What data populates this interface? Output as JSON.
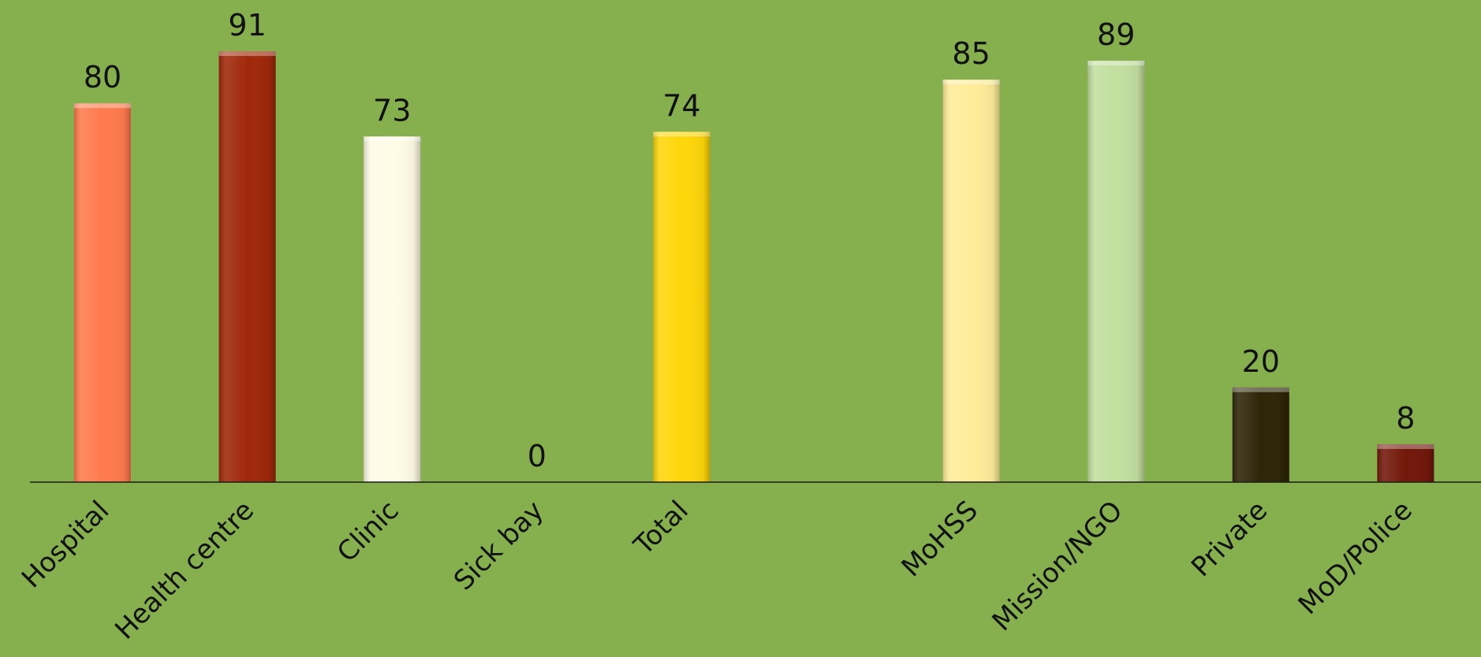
{
  "chart_data": {
    "type": "bar",
    "categories": [
      "Hospital",
      "Health centre",
      "Clinic",
      "Sick bay",
      "Total",
      "",
      "MoHSS",
      "Mission/NGO",
      "Private",
      "MoD/Police"
    ],
    "values": [
      80,
      91,
      73,
      0,
      74,
      null,
      85,
      89,
      20,
      8
    ],
    "value_labels": [
      "80",
      "91",
      "73",
      "0",
      "74",
      "",
      "85",
      "89",
      "20",
      "8"
    ],
    "colors": [
      "#ff7a4d",
      "#a0280a",
      "#fffbe6",
      "#ffffff",
      "#ffd60a",
      "",
      "#ffec99",
      "#c2dfa0",
      "#2e2508",
      "#72180a"
    ],
    "ylim": [
      0,
      100
    ],
    "title": "",
    "xlabel": "",
    "ylabel": "",
    "grid": false,
    "legend": "none",
    "background": "#86b04d"
  }
}
